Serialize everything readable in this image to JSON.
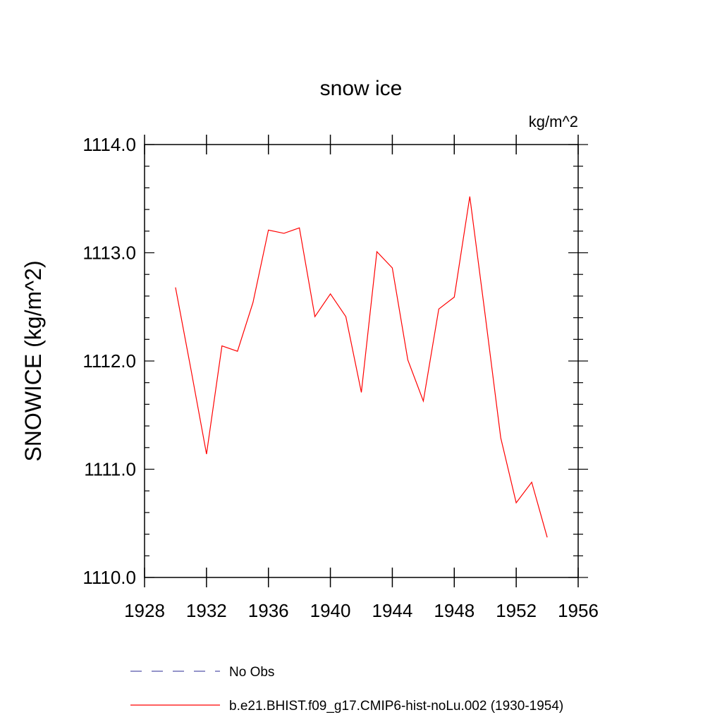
{
  "chart_data": {
    "type": "line",
    "title": "snow ice",
    "units": "kg/m^2",
    "xlabel": "",
    "ylabel": "SNOWICE  (kg/m^2)",
    "xlim": [
      1928,
      1956
    ],
    "ylim": [
      1110.0,
      1114.0
    ],
    "x_ticks": [
      1928,
      1932,
      1936,
      1940,
      1944,
      1948,
      1952,
      1956
    ],
    "x_tick_labels": [
      "1928",
      "1932",
      "1936",
      "1940",
      "1944",
      "1948",
      "1952",
      "1956"
    ],
    "y_ticks": [
      1110.0,
      1111.0,
      1112.0,
      1113.0,
      1114.0
    ],
    "y_tick_labels": [
      "1110.0",
      "1111.0",
      "1112.0",
      "1113.0",
      "1114.0"
    ],
    "grid": false,
    "legend_position": "bottom",
    "series": [
      {
        "name": "b.e21.BHIST.f09_g17.CMIP6-hist-noLu.002 (1930-1954)",
        "color": "#ff0000",
        "dash": "solid",
        "x": [
          1930,
          1931,
          1932,
          1933,
          1934,
          1935,
          1936,
          1937,
          1938,
          1939,
          1940,
          1941,
          1942,
          1943,
          1944,
          1945,
          1946,
          1947,
          1948,
          1949,
          1950,
          1951,
          1952,
          1953,
          1954
        ],
        "y": [
          1112.68,
          1111.92,
          1111.14,
          1112.14,
          1112.09,
          1112.54,
          1113.21,
          1113.18,
          1113.23,
          1112.41,
          1112.62,
          1112.41,
          1111.71,
          1113.01,
          1112.86,
          1112.01,
          1111.63,
          1112.48,
          1112.59,
          1113.52,
          1112.42,
          1111.29,
          1110.69,
          1110.88,
          1110.37
        ]
      }
    ],
    "legend": [
      {
        "label": "No Obs",
        "color": "#5555aa",
        "dash": "dashed"
      },
      {
        "label": "b.e21.BHIST.f09_g17.CMIP6-hist-noLu.002 (1930-1954)",
        "color": "#ff0000",
        "dash": "solid"
      }
    ]
  }
}
